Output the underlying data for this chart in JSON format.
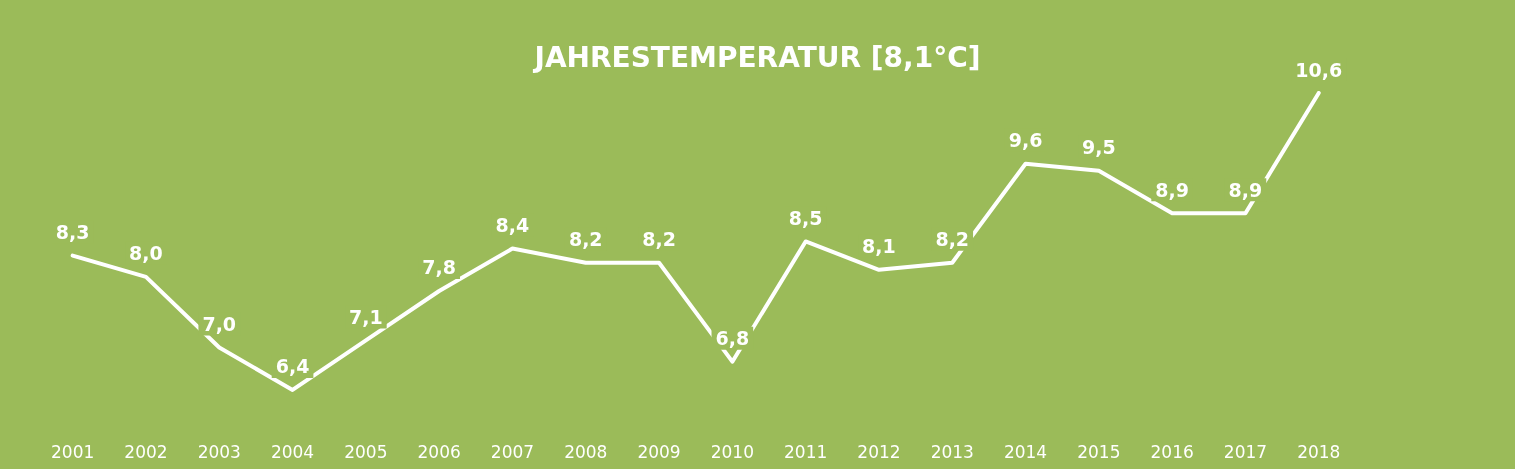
{
  "chart_data": {
    "type": "line",
    "title": "JAHRESTEMPERATUR [8,1°C]",
    "categories": [
      "2001",
      "2002",
      "2003",
      "2004",
      "2005",
      "2006",
      "2007",
      "2008",
      "2009",
      "2010",
      "2011",
      "2012",
      "2013",
      "2014",
      "2015",
      "2016",
      "2017",
      "2018",
      null,
      null
    ],
    "series": [
      {
        "color": "#ffffff",
        "values": [
          8.3,
          8.0,
          7.0,
          6.4,
          7.1,
          7.8,
          8.4,
          8.2,
          8.2,
          6.8,
          8.5,
          8.1,
          8.2,
          9.6,
          9.5,
          8.9,
          8.9,
          10.6,
          null,
          null
        ],
        "value_labels": [
          "8,3",
          "8,0",
          "7,0",
          "6,4",
          "7,1",
          "7,8",
          "8,4",
          "8,2",
          "8,2",
          "6,8",
          "8,5",
          "8,1",
          "8,2",
          "9,6",
          "9,5",
          "8,9",
          "8,9",
          "10,6",
          null,
          null
        ]
      }
    ],
    "grid": false,
    "marker": "none",
    "line_style": "solid"
  }
}
